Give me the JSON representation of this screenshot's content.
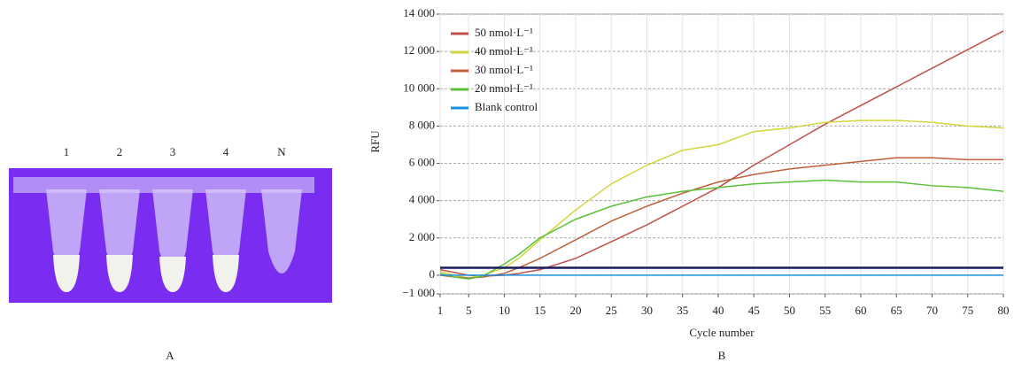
{
  "panel_a": {
    "tube_labels": [
      "1",
      "2",
      "3",
      "4",
      "N"
    ],
    "label": "A"
  },
  "chart_data": {
    "type": "line",
    "panel_label": "B",
    "x_label": "Cycle number",
    "y_label": "RFU",
    "x": [
      1,
      3,
      5,
      7,
      10,
      12,
      15,
      20,
      25,
      30,
      35,
      40,
      45,
      50,
      55,
      60,
      65,
      70,
      75,
      80
    ],
    "series": [
      {
        "name": "50 nmol·L⁻¹",
        "color": "#c0504d",
        "values": [
          300,
          150,
          0,
          -50,
          0,
          100,
          300,
          900,
          1800,
          2700,
          3700,
          4700,
          5900,
          7000,
          8100,
          9100,
          10100,
          11100,
          12100,
          13100
        ]
      },
      {
        "name": "40 nmol·L⁻¹",
        "color": "#d4d43c",
        "values": [
          200,
          0,
          -150,
          0,
          400,
          900,
          1900,
          3500,
          4900,
          5900,
          6700,
          7000,
          7700,
          7900,
          8200,
          8300,
          8300,
          8200,
          8000,
          7900
        ]
      },
      {
        "name": "30 nmol·L⁻¹",
        "color": "#c0603a",
        "values": [
          0,
          -100,
          -150,
          -100,
          100,
          400,
          900,
          1900,
          2900,
          3700,
          4400,
          5000,
          5400,
          5700,
          5900,
          6100,
          6300,
          6300,
          6200,
          6200
        ]
      },
      {
        "name": "20 nmol·L⁻¹",
        "color": "#5cc13a",
        "values": [
          100,
          -100,
          -200,
          -50,
          600,
          1100,
          2000,
          3000,
          3700,
          4200,
          4500,
          4700,
          4900,
          5000,
          5100,
          5000,
          5000,
          4800,
          4700,
          4500
        ]
      },
      {
        "name": "Blank control",
        "color": "#1a8fe0",
        "values": [
          0,
          0,
          0,
          0,
          0,
          0,
          0,
          0,
          0,
          0,
          0,
          0,
          0,
          0,
          0,
          0,
          0,
          0,
          0,
          0
        ]
      }
    ],
    "threshold": 400,
    "threshold_color": "#1a1a5e",
    "xlim": [
      1,
      80
    ],
    "xticks": [
      1,
      5,
      10,
      15,
      20,
      25,
      30,
      35,
      40,
      45,
      50,
      55,
      60,
      65,
      70,
      75,
      80
    ],
    "ylim": [
      -1000,
      14000
    ],
    "yticks": [
      {
        "value": -1000,
        "label": "−1 000"
      },
      0,
      {
        "value": 2000,
        "label": "2 000"
      },
      {
        "value": 4000,
        "label": "4 000"
      },
      {
        "value": 6000,
        "label": "6 000"
      },
      {
        "value": 8000,
        "label": "8 000"
      },
      {
        "value": 10000,
        "label": "10 000"
      },
      {
        "value": 12000,
        "label": "12 000"
      },
      {
        "value": 14000,
        "label": "14 000"
      }
    ],
    "grid": true,
    "legend": "top-left"
  }
}
